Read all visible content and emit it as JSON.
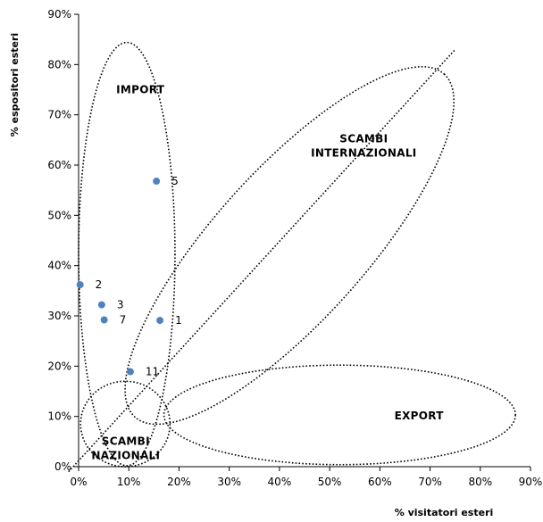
{
  "chart_data": {
    "type": "scatter",
    "xlabel": "% visitatori esteri",
    "ylabel": "% espositori esteri",
    "xlim": [
      0,
      90
    ],
    "ylim": [
      0,
      90
    ],
    "x_ticks": [
      "0%",
      "10%",
      "20%",
      "30%",
      "40%",
      "50%",
      "60%",
      "70%",
      "80%",
      "90%"
    ],
    "y_ticks": [
      "0%",
      "10%",
      "20%",
      "30%",
      "40%",
      "50%",
      "60%",
      "70%",
      "80%",
      "90%"
    ],
    "grid": false,
    "marker_color": "#4f81bd",
    "points": [
      {
        "label": "5",
        "x": 15.5,
        "y": 56.8
      },
      {
        "label": "2",
        "x": 0.3,
        "y": 36.2
      },
      {
        "label": "3",
        "x": 4.6,
        "y": 32.2
      },
      {
        "label": "7",
        "x": 5.1,
        "y": 29.2
      },
      {
        "label": "1",
        "x": 16.2,
        "y": 29.1
      },
      {
        "label": "11",
        "x": 10.3,
        "y": 18.9
      }
    ],
    "diagonal": {
      "from": [
        -2,
        -1
      ],
      "to": [
        75,
        83
      ]
    },
    "regions": [
      {
        "name": "IMPORT",
        "lines": [
          "IMPORT"
        ],
        "center": [
          9.6,
          42.3
        ],
        "rx": 9.6,
        "ry": 42.1,
        "rotation": 0,
        "label_at": [
          12.3,
          75.0
        ]
      },
      {
        "name": "SCAMBI INTERNAZIONALI",
        "lines": [
          "SCAMBI",
          "INTERNAZIONALI"
        ],
        "center": [
          42,
          44
        ],
        "rx": 46,
        "ry": 15,
        "rotation": -48,
        "label_at": [
          56.8,
          63.8
        ]
      },
      {
        "name": "EXPORT",
        "lines": [
          "EXPORT"
        ],
        "center": [
          52,
          10.3
        ],
        "rx": 35,
        "ry": 9.9,
        "rotation": 0,
        "label_at": [
          67.8,
          10.1
        ]
      },
      {
        "name": "SCAMBI NAZIONALI",
        "lines": [
          "SCAMBI",
          "NAZIONALI"
        ],
        "center": [
          9.3,
          8.5
        ],
        "rx": 8.9,
        "ry": 8.5,
        "rotation": 0,
        "label_at": [
          9.4,
          3.6
        ]
      }
    ]
  }
}
